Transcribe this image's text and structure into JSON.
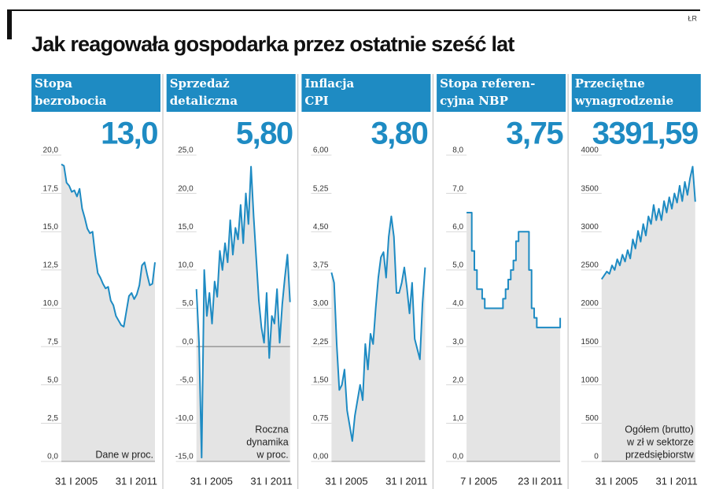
{
  "title": "Jak reagowała gospodarka przez ostatnie sześć lat",
  "credit": "ŁR",
  "chart_data": [
    {
      "type": "line",
      "color": "#1e8bc3",
      "title_lines": [
        "Stopa",
        "bezrobocia"
      ],
      "highlight": "13,0",
      "note_lines": [
        "Dane w proc."
      ],
      "categories": [
        "31 I 2005",
        null,
        null,
        null,
        null,
        null,
        null,
        null,
        null,
        null,
        null,
        null,
        null,
        null,
        null,
        null,
        null,
        null,
        null,
        null,
        null,
        null,
        null,
        null,
        null,
        null,
        null,
        null,
        null,
        null,
        null,
        null,
        null,
        null,
        null,
        null,
        "31 I 2011"
      ],
      "values": [
        19.4,
        19.3,
        18.2,
        18.0,
        17.6,
        17.7,
        17.3,
        17.8,
        16.5,
        15.9,
        15.2,
        14.9,
        15.0,
        13.5,
        12.3,
        12.0,
        11.6,
        11.3,
        11.4,
        10.5,
        10.2,
        9.5,
        9.2,
        8.9,
        8.8,
        9.8,
        10.8,
        11.0,
        10.6,
        10.9,
        11.5,
        12.8,
        13.0,
        12.2,
        11.5,
        11.6,
        13.0
      ],
      "ylim": [
        0,
        20
      ],
      "yticks": [
        {
          "value": 0,
          "label": "0,0"
        },
        {
          "value": 2.5,
          "label": "2,5"
        },
        {
          "value": 5,
          "label": "5,0"
        },
        {
          "value": 7.5,
          "label": "7,5"
        },
        {
          "value": 10,
          "label": "10,0"
        },
        {
          "value": 12.5,
          "label": "12,5"
        },
        {
          "value": 15,
          "label": "15,0"
        },
        {
          "value": 17.5,
          "label": "17,5"
        },
        {
          "value": 20,
          "label": "20,0"
        }
      ]
    },
    {
      "type": "line",
      "color": "#1e8bc3",
      "title_lines": [
        "Sprzedaż",
        "detaliczna"
      ],
      "highlight": "5,80",
      "note_lines": [
        "Roczna",
        "dynamika",
        "w proc."
      ],
      "zero_line": true,
      "categories": [
        "31 I 2005",
        null,
        null,
        null,
        null,
        null,
        null,
        null,
        null,
        null,
        null,
        null,
        null,
        null,
        null,
        null,
        null,
        null,
        null,
        null,
        null,
        null,
        null,
        null,
        null,
        null,
        null,
        null,
        null,
        null,
        null,
        null,
        null,
        null,
        null,
        null,
        "31 I 2011"
      ],
      "values": [
        7.5,
        0.5,
        -14.5,
        10.0,
        4.0,
        7.0,
        3.0,
        8.5,
        6.5,
        12.5,
        10.0,
        13.5,
        11.0,
        16.5,
        12.0,
        15.5,
        14.0,
        18.5,
        13.5,
        20.0,
        16.0,
        23.5,
        17.0,
        11.5,
        6.0,
        2.5,
        0.5,
        7.0,
        -1.5,
        4.0,
        3.0,
        7.5,
        0.5,
        5.5,
        9.0,
        12.0,
        5.8
      ],
      "ylim": [
        -15,
        25
      ],
      "yticks": [
        {
          "value": -15,
          "label": "-15,0"
        },
        {
          "value": -10,
          "label": "-10,0"
        },
        {
          "value": -5,
          "label": "-5,0"
        },
        {
          "value": 0,
          "label": "0,0"
        },
        {
          "value": 5,
          "label": "5,0"
        },
        {
          "value": 10,
          "label": "10,0"
        },
        {
          "value": 15,
          "label": "15,0"
        },
        {
          "value": 20,
          "label": "20,0"
        },
        {
          "value": 25,
          "label": "25,0"
        }
      ]
    },
    {
      "type": "line",
      "color": "#1e8bc3",
      "title_lines": [
        "Inflacja",
        "CPI"
      ],
      "highlight": "3,80",
      "note_lines": [],
      "categories": [
        "31 I 2005",
        null,
        null,
        null,
        null,
        null,
        null,
        null,
        null,
        null,
        null,
        null,
        null,
        null,
        null,
        null,
        null,
        null,
        null,
        null,
        null,
        null,
        null,
        null,
        null,
        null,
        null,
        null,
        null,
        null,
        null,
        null,
        null,
        null,
        null,
        null,
        "31 I 2011"
      ],
      "values": [
        3.7,
        3.5,
        2.3,
        1.4,
        1.5,
        1.8,
        1.0,
        0.7,
        0.4,
        0.9,
        1.2,
        1.5,
        1.2,
        2.3,
        1.8,
        2.5,
        2.3,
        3.0,
        3.6,
        4.0,
        4.1,
        3.6,
        4.4,
        4.8,
        4.4,
        3.3,
        3.3,
        3.5,
        3.8,
        3.4,
        2.9,
        3.5,
        2.4,
        2.2,
        2.0,
        3.1,
        3.8
      ],
      "ylim": [
        0,
        6
      ],
      "yticks": [
        {
          "value": 0,
          "label": "0,00"
        },
        {
          "value": 0.75,
          "label": "0,75"
        },
        {
          "value": 1.5,
          "label": "1,50"
        },
        {
          "value": 2.25,
          "label": "2,25"
        },
        {
          "value": 3,
          "label": "3,00"
        },
        {
          "value": 3.75,
          "label": "3,75"
        },
        {
          "value": 4.5,
          "label": "4,50"
        },
        {
          "value": 5.25,
          "label": "5,25"
        },
        {
          "value": 6,
          "label": "6,00"
        }
      ]
    },
    {
      "type": "line",
      "step": true,
      "color": "#1e8bc3",
      "title_lines": [
        "Stopa referen-",
        "cyjna NBP"
      ],
      "highlight": "3,75",
      "note_lines": [],
      "categories": [
        "7 I 2005",
        null,
        null,
        null,
        null,
        null,
        null,
        null,
        null,
        null,
        null,
        null,
        null,
        null,
        null,
        null,
        null,
        null,
        null,
        null,
        null,
        null,
        null,
        null,
        null,
        null,
        null,
        null,
        null,
        null,
        null,
        null,
        null,
        null,
        null,
        null,
        "23 II 2011"
      ],
      "values": [
        6.5,
        6.5,
        5.5,
        5.0,
        4.5,
        4.5,
        4.25,
        4.0,
        4.0,
        4.0,
        4.0,
        4.0,
        4.0,
        4.0,
        4.25,
        4.5,
        4.75,
        5.0,
        5.25,
        5.75,
        6.0,
        6.0,
        6.0,
        6.0,
        5.0,
        4.0,
        3.75,
        3.5,
        3.5,
        3.5,
        3.5,
        3.5,
        3.5,
        3.5,
        3.5,
        3.5,
        3.75
      ],
      "ylim": [
        0,
        8
      ],
      "yticks": [
        {
          "value": 0,
          "label": "0,0"
        },
        {
          "value": 1,
          "label": "1,0"
        },
        {
          "value": 2,
          "label": "2,0"
        },
        {
          "value": 3,
          "label": "3,0"
        },
        {
          "value": 4,
          "label": "4,0"
        },
        {
          "value": 5,
          "label": "5,0"
        },
        {
          "value": 6,
          "label": "6,0"
        },
        {
          "value": 7,
          "label": "7,0"
        },
        {
          "value": 8,
          "label": "8,0"
        }
      ]
    },
    {
      "type": "line",
      "color": "#1e8bc3",
      "title_lines": [
        "Przeciętne",
        "wynagrodzenie"
      ],
      "highlight": "3391,59",
      "note_lines": [
        "Ogółem (brutto)",
        "w zł w sektorze",
        "przedsiębiorstw"
      ],
      "categories": [
        "31 I 2005",
        null,
        null,
        null,
        null,
        null,
        null,
        null,
        null,
        null,
        null,
        null,
        null,
        null,
        null,
        null,
        null,
        null,
        null,
        null,
        null,
        null,
        null,
        null,
        null,
        null,
        null,
        null,
        null,
        null,
        null,
        null,
        null,
        null,
        null,
        null,
        "31 I 2011"
      ],
      "values": [
        2380,
        2430,
        2480,
        2450,
        2560,
        2500,
        2640,
        2560,
        2700,
        2610,
        2760,
        2650,
        2900,
        2780,
        3010,
        2870,
        3100,
        2950,
        3200,
        3100,
        3350,
        3150,
        3300,
        3150,
        3400,
        3250,
        3450,
        3300,
        3500,
        3380,
        3600,
        3400,
        3650,
        3480,
        3700,
        3850,
        3391.59
      ],
      "ylim": [
        0,
        4000
      ],
      "yticks": [
        0,
        500,
        1000,
        1500,
        2000,
        2500,
        3000,
        3500,
        4000
      ]
    }
  ]
}
